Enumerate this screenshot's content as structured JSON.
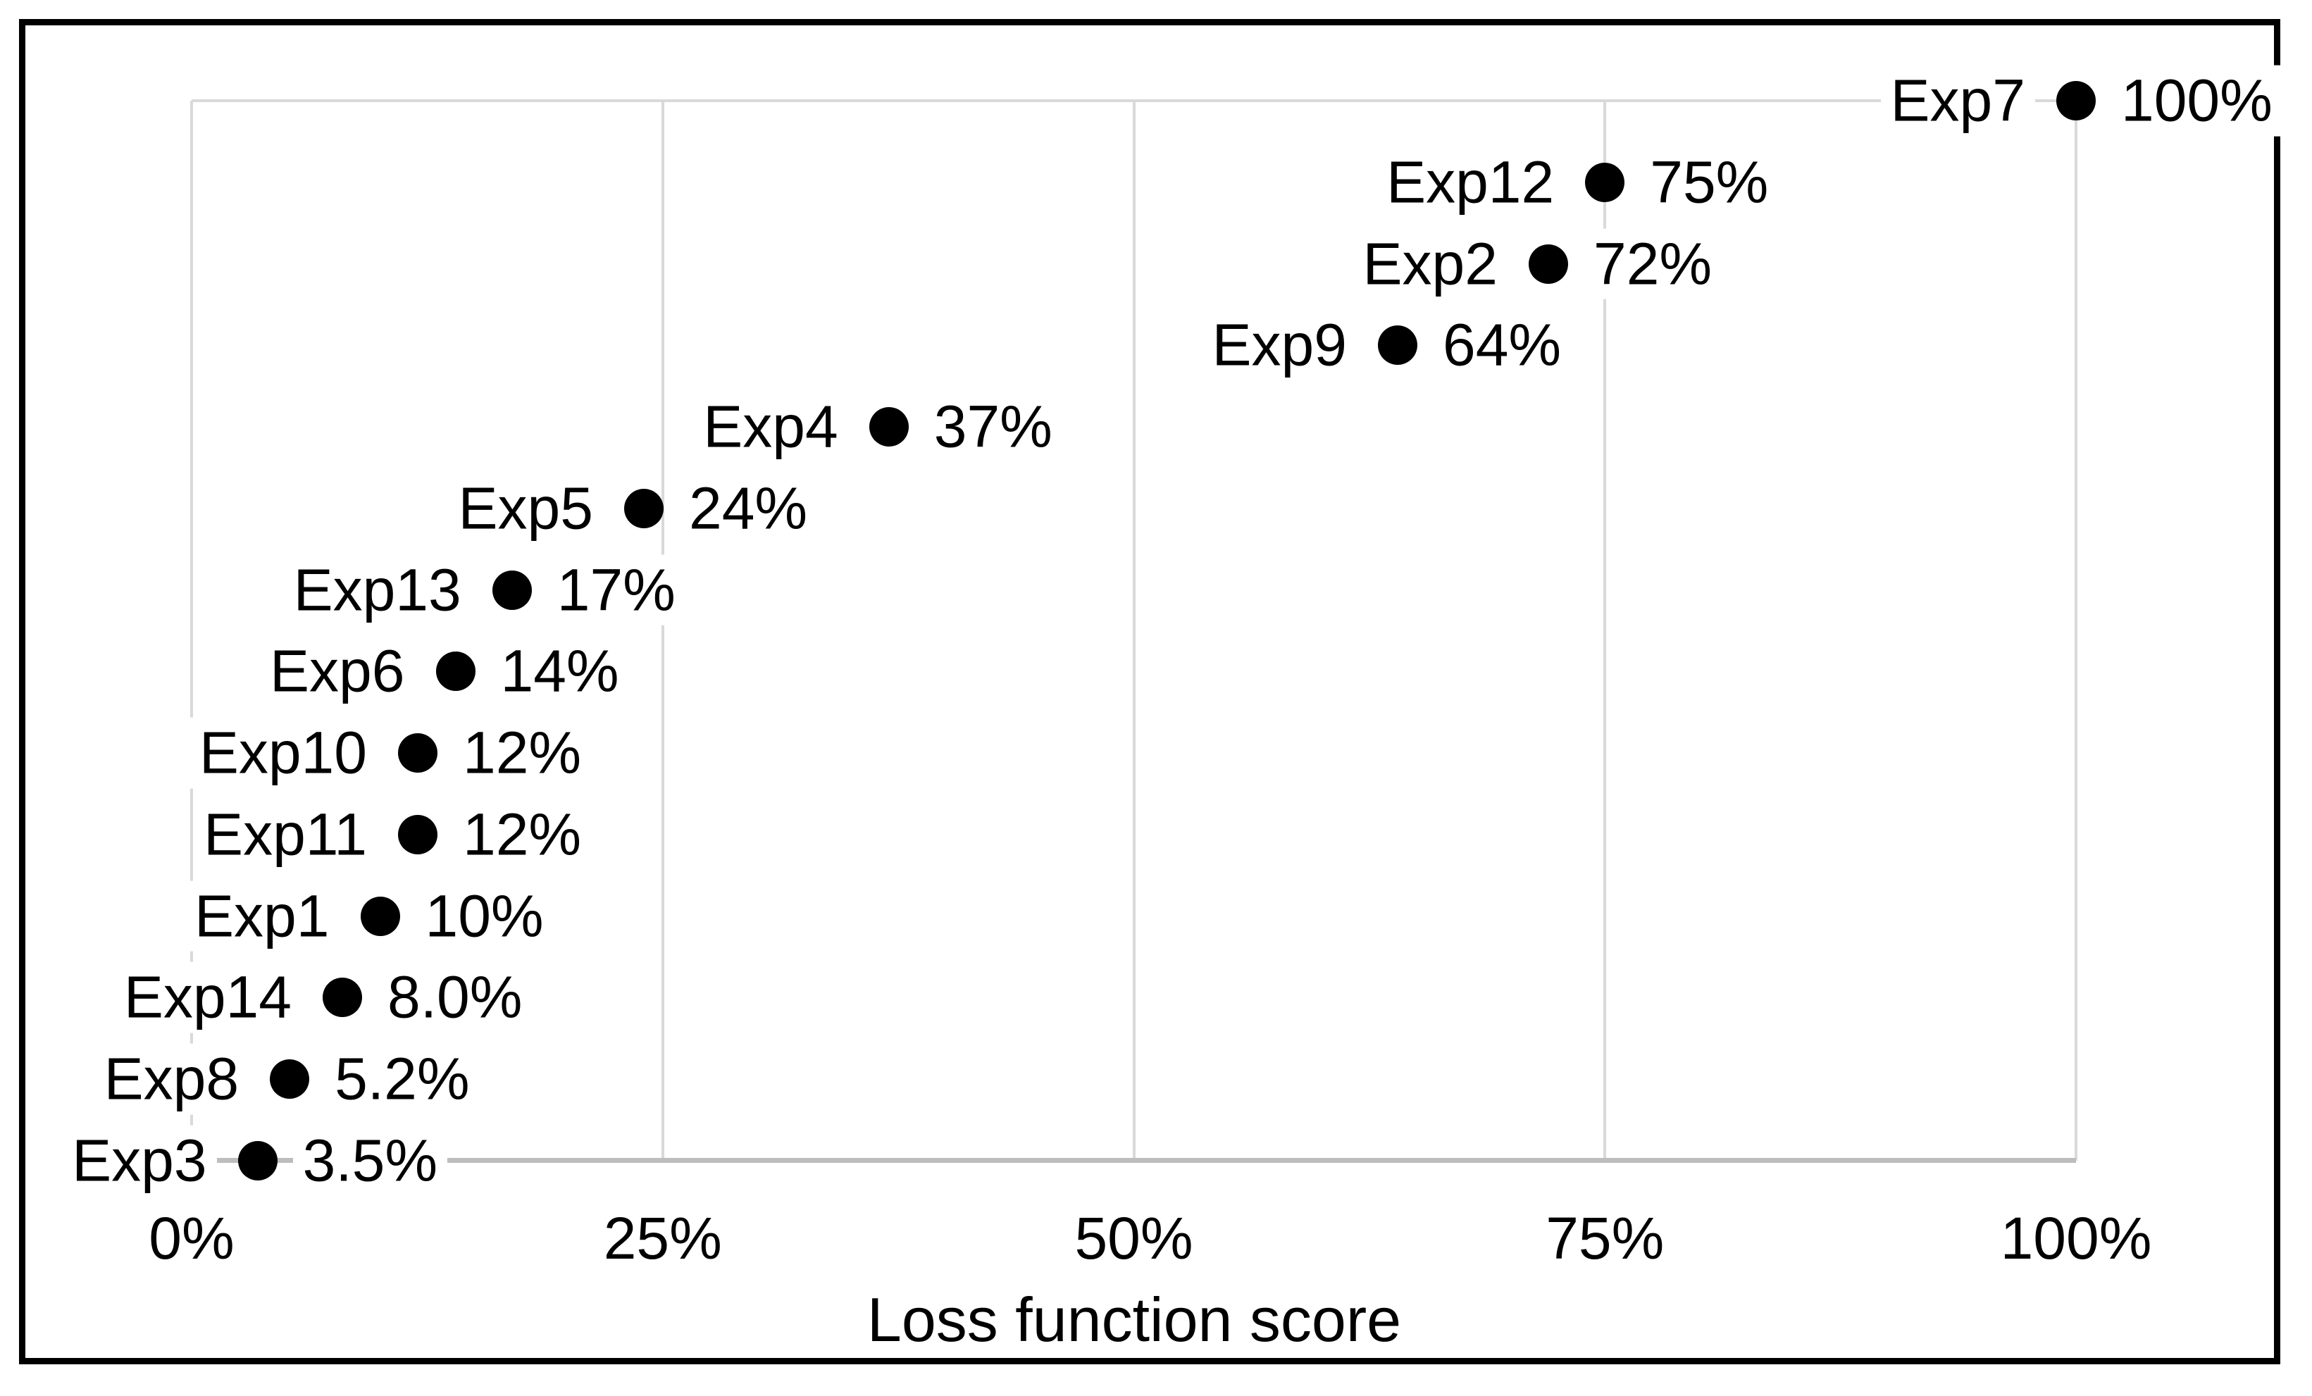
{
  "chart_data": {
    "type": "scatter",
    "title": "",
    "xlabel": "Loss function score",
    "xlim": [
      0,
      100
    ],
    "grid": true,
    "legend": false,
    "x_ticks": [
      {
        "label": "0%",
        "value": 0
      },
      {
        "label": "25%",
        "value": 25
      },
      {
        "label": "50%",
        "value": 50
      },
      {
        "label": "75%",
        "value": 75
      },
      {
        "label": "100%",
        "value": 100
      }
    ],
    "points": [
      {
        "label": "Exp7",
        "value": 100,
        "value_label": "100%"
      },
      {
        "label": "Exp12",
        "value": 75,
        "value_label": "75%"
      },
      {
        "label": "Exp2",
        "value": 72,
        "value_label": "72%"
      },
      {
        "label": "Exp9",
        "value": 64,
        "value_label": "64%"
      },
      {
        "label": "Exp4",
        "value": 37,
        "value_label": "37%"
      },
      {
        "label": "Exp5",
        "value": 24,
        "value_label": "24%"
      },
      {
        "label": "Exp13",
        "value": 17,
        "value_label": "17%"
      },
      {
        "label": "Exp6",
        "value": 14,
        "value_label": "14%"
      },
      {
        "label": "Exp10",
        "value": 12,
        "value_label": "12%"
      },
      {
        "label": "Exp11",
        "value": 12,
        "value_label": "12%"
      },
      {
        "label": "Exp1",
        "value": 10,
        "value_label": "10%"
      },
      {
        "label": "Exp14",
        "value": 8,
        "value_label": "8.0%"
      },
      {
        "label": "Exp8",
        "value": 5.2,
        "value_label": "5.2%"
      },
      {
        "label": "Exp3",
        "value": 3.5,
        "value_label": "3.5%"
      }
    ],
    "colors": {
      "marker": "#000000",
      "gridline": "#d9d9d9",
      "axis_line": "#bdbdbd",
      "frame_border": "#000000",
      "text": "#000000",
      "background": "#ffffff"
    }
  }
}
